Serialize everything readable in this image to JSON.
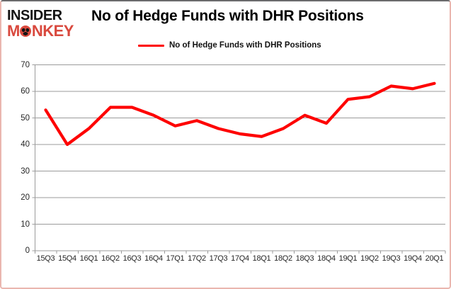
{
  "logo": {
    "insider": "INSIDER",
    "monkey_m": "M",
    "monkey_o": "O",
    "monkey_rest": "NKEY",
    "color_red": "#d9493e"
  },
  "header": {
    "title": "No of Hedge Funds with DHR Positions"
  },
  "legend": {
    "label": "No of Hedge Funds with DHR Positions",
    "line_color": "#fe0000"
  },
  "chart_data": {
    "type": "line",
    "title": "No of Hedge Funds with DHR Positions",
    "categories": [
      "15Q3",
      "15Q4",
      "16Q1",
      "16Q2",
      "16Q3",
      "16Q4",
      "17Q1",
      "17Q2",
      "17Q3",
      "17Q4",
      "18Q1",
      "18Q2",
      "18Q3",
      "18Q4",
      "19Q1",
      "19Q2",
      "19Q3",
      "19Q4",
      "20Q1"
    ],
    "series": [
      {
        "name": "No of Hedge Funds with DHR Positions",
        "color": "#fe0000",
        "values": [
          53,
          40,
          46,
          54,
          54,
          51,
          47,
          49,
          46,
          44,
          43,
          46,
          51,
          48,
          57,
          58,
          62,
          61,
          63
        ]
      }
    ],
    "xlabel": "",
    "ylabel": "",
    "ylim": [
      0,
      70
    ],
    "ytick_step": 10,
    "grid": true,
    "legend_position": "top"
  },
  "colors": {
    "grid": "#9b9b9b",
    "axis": "#9b9b9b",
    "tick_text": "#262626",
    "line": "#fe0000",
    "background": "#ffffff"
  }
}
